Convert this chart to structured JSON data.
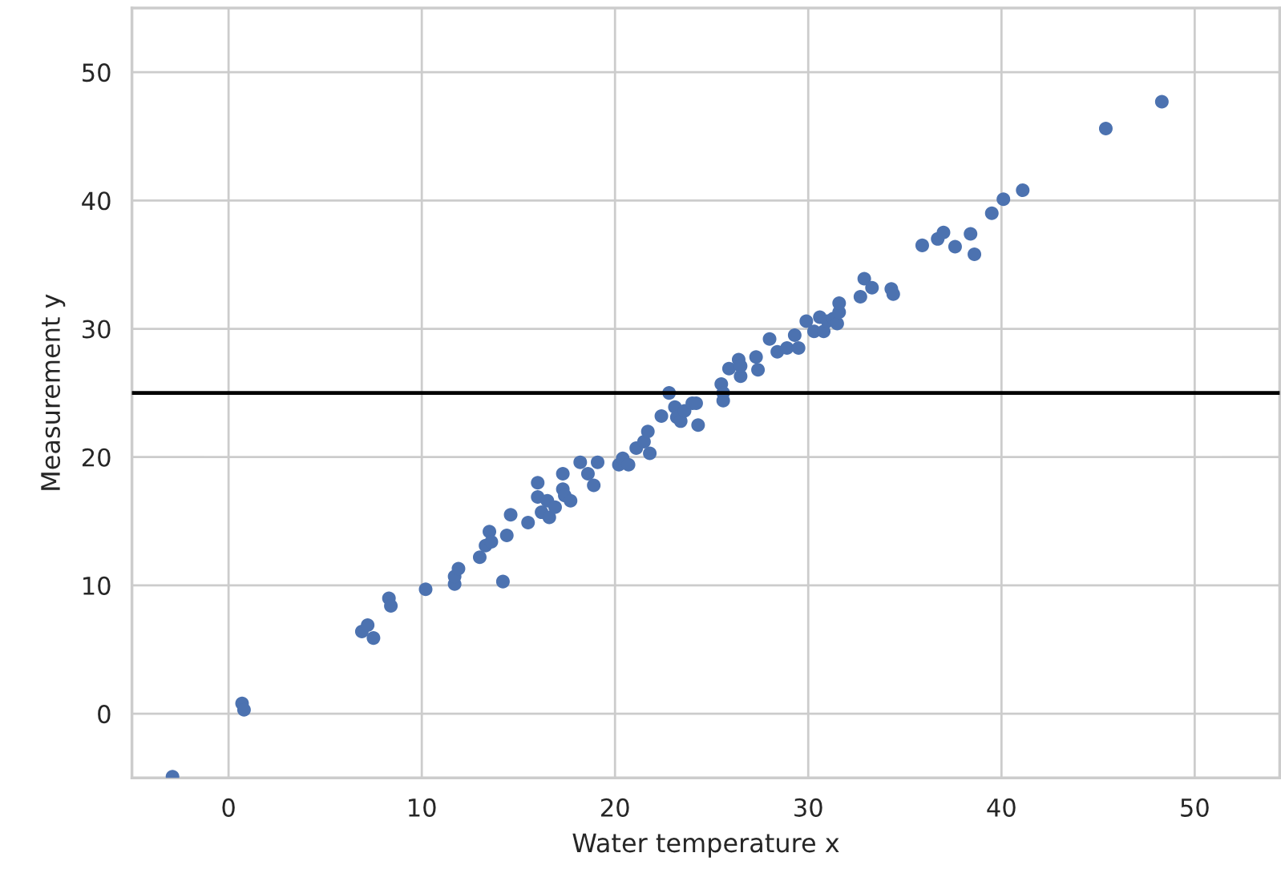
{
  "chart_data": {
    "type": "scatter",
    "xlabel": "Water temperature x",
    "ylabel": "Measurement y",
    "xlim": [
      -5,
      54.4
    ],
    "ylim": [
      -5,
      55
    ],
    "xticks": [
      0,
      10,
      20,
      30,
      40,
      50
    ],
    "yticks": [
      0,
      10,
      20,
      30,
      40,
      50
    ],
    "grid": true,
    "marker": "circle",
    "ref_lines": [
      {
        "axis": "y",
        "value": 25,
        "color": "#000000"
      }
    ],
    "series": [
      {
        "color": "#4c72b0",
        "x": [
          -2.9,
          0.7,
          0.8,
          6.9,
          7.2,
          7.5,
          8.3,
          8.4,
          10.2,
          11.7,
          11.7,
          11.9,
          13.0,
          13.5,
          13.3,
          13.6,
          14.2,
          14.4,
          14.6,
          15.5,
          16.0,
          16.0,
          16.2,
          16.5,
          16.6,
          16.9,
          17.3,
          17.3,
          17.4,
          17.7,
          18.2,
          18.6,
          18.9,
          19.1,
          20.2,
          20.4,
          20.7,
          21.1,
          21.5,
          21.7,
          21.8,
          22.4,
          22.8,
          23.1,
          23.2,
          23.4,
          23.6,
          24.0,
          24.2,
          24.3,
          25.5,
          25.6,
          25.6,
          25.9,
          26.4,
          26.5,
          26.5,
          27.3,
          27.4,
          28.0,
          28.4,
          28.9,
          29.3,
          29.5,
          29.9,
          30.3,
          30.6,
          30.8,
          31.0,
          31.3,
          31.5,
          31.6,
          31.6,
          32.7,
          32.9,
          33.3,
          34.3,
          34.4,
          35.9,
          36.7,
          37.0,
          37.6,
          38.4,
          38.6,
          39.5,
          40.1,
          41.1,
          45.4,
          48.3
        ],
        "values": [
          -4.9,
          0.8,
          0.3,
          6.4,
          6.9,
          5.9,
          9.0,
          8.4,
          9.7,
          10.1,
          10.7,
          11.3,
          12.2,
          14.2,
          13.1,
          13.4,
          10.3,
          13.9,
          15.5,
          14.9,
          18.0,
          16.9,
          15.7,
          16.6,
          15.3,
          16.1,
          18.7,
          17.5,
          17.0,
          16.6,
          19.6,
          18.7,
          17.8,
          19.6,
          19.4,
          19.9,
          19.4,
          20.7,
          21.2,
          22.0,
          20.3,
          23.2,
          25.0,
          23.9,
          23.1,
          22.8,
          23.6,
          24.2,
          24.2,
          22.5,
          25.7,
          25.0,
          24.4,
          26.9,
          27.6,
          26.3,
          27.1,
          27.8,
          26.8,
          29.2,
          28.2,
          28.5,
          29.5,
          28.5,
          30.6,
          29.8,
          30.9,
          29.8,
          30.6,
          30.8,
          30.4,
          31.3,
          32.0,
          32.5,
          33.9,
          33.2,
          33.1,
          32.7,
          36.5,
          37.0,
          37.5,
          36.4,
          37.4,
          35.8,
          39.0,
          40.1,
          40.8,
          45.6,
          47.7
        ]
      }
    ]
  }
}
